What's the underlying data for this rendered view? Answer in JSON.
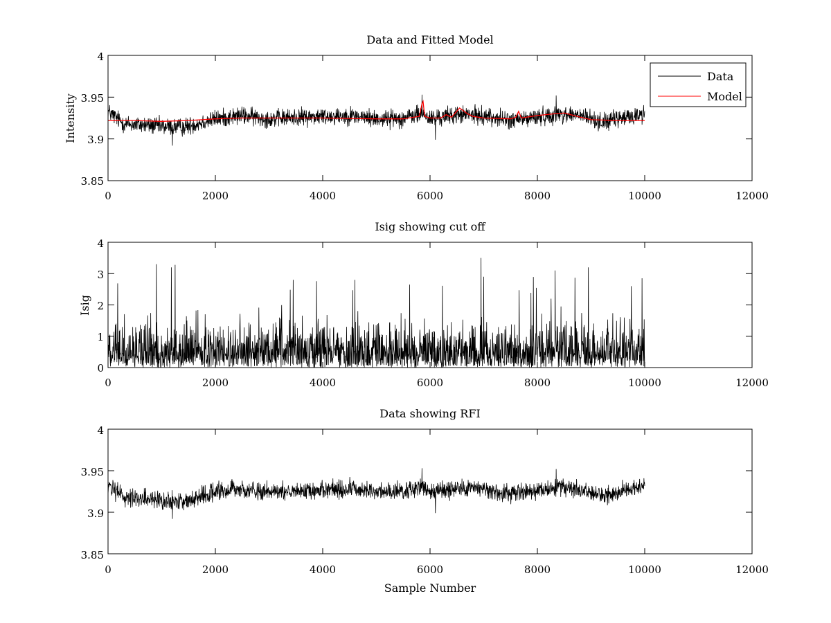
{
  "chart_data": [
    {
      "type": "line",
      "title": "Data and Fitted Model",
      "xlabel": "",
      "ylabel": "Intensity",
      "xlim": [
        0,
        12000
      ],
      "ylim": [
        3.85,
        4
      ],
      "xticks": [
        0,
        2000,
        4000,
        6000,
        8000,
        10000,
        12000
      ],
      "xtick_labels": [
        "0",
        "2000",
        "4000",
        "6000",
        "8000",
        "10000",
        "12000"
      ],
      "yticks": [
        3.85,
        3.9,
        3.95,
        4
      ],
      "ytick_labels": [
        "3.85",
        "3.9",
        "3.95",
        "4"
      ],
      "legend": {
        "position": "top-right",
        "entries": [
          "Data",
          "Model"
        ]
      },
      "series": [
        {
          "name": "Data",
          "color": "#000000",
          "kind": "noise",
          "x": [
            0,
            300,
            600,
            1000,
            1400,
            2000,
            2500,
            3000,
            3500,
            4000,
            4500,
            5000,
            5500,
            5850,
            6000,
            6500,
            7000,
            7500,
            8000,
            8400,
            8800,
            9200,
            9600,
            10000
          ],
          "values": [
            3.933,
            3.918,
            3.917,
            3.915,
            3.914,
            3.924,
            3.928,
            3.924,
            3.926,
            3.927,
            3.928,
            3.924,
            3.925,
            3.93,
            3.924,
            3.929,
            3.928,
            3.922,
            3.926,
            3.93,
            3.928,
            3.92,
            3.925,
            3.93
          ],
          "noise_amplitude": 0.0075,
          "spikes": [
            [
              5850,
              3.953
            ],
            [
              6100,
              3.899
            ],
            [
              8350,
              3.952
            ],
            [
              1200,
              3.892
            ]
          ]
        },
        {
          "name": "Model",
          "color": "#ff0000",
          "kind": "line",
          "x": [
            0,
            500,
            1000,
            1500,
            2000,
            2500,
            3000,
            4000,
            5000,
            5500,
            5800,
            5850,
            5870,
            5900,
            6000,
            6200,
            6300,
            6400,
            6550,
            6700,
            6800,
            7000,
            7500,
            7600,
            7650,
            7700,
            8000,
            8300,
            8500,
            8800,
            9000,
            9500,
            10000
          ],
          "values": [
            3.922,
            3.922,
            3.921,
            3.922,
            3.924,
            3.925,
            3.925,
            3.925,
            3.924,
            3.924,
            3.927,
            3.942,
            3.945,
            3.927,
            3.925,
            3.925,
            3.929,
            3.926,
            3.937,
            3.93,
            3.927,
            3.925,
            3.924,
            3.926,
            3.933,
            3.925,
            3.928,
            3.93,
            3.931,
            3.926,
            3.923,
            3.922,
            3.922
          ]
        }
      ]
    },
    {
      "type": "line",
      "title": "Isig showing cut off",
      "xlabel": "",
      "ylabel": "Isig",
      "xlim": [
        0,
        12000
      ],
      "ylim": [
        0,
        4
      ],
      "xticks": [
        0,
        2000,
        4000,
        6000,
        8000,
        10000,
        12000
      ],
      "xtick_labels": [
        "0",
        "2000",
        "4000",
        "6000",
        "8000",
        "10000",
        "12000"
      ],
      "yticks": [
        0,
        1,
        2,
        3,
        4
      ],
      "ytick_labels": [
        "0",
        "1",
        "2",
        "3",
        "4"
      ],
      "series": [
        {
          "name": "Isig",
          "color": "#000000",
          "kind": "abs_noise",
          "x": [
            0,
            10000
          ],
          "values": [
            0.8,
            0.8
          ],
          "spikes": [
            [
              900,
              3.3
            ],
            [
              1250,
              3.28
            ],
            [
              1180,
              3.2
            ],
            [
              3450,
              2.8
            ],
            [
              4600,
              2.8
            ],
            [
              6950,
              3.5
            ],
            [
              7000,
              2.9
            ],
            [
              8330,
              3.1
            ],
            [
              8950,
              3.2
            ],
            [
              9750,
              2.6
            ],
            [
              9950,
              2.85
            ]
          ]
        }
      ]
    },
    {
      "type": "line",
      "title": "Data showing RFI",
      "xlabel": "Sample Number",
      "ylabel": "",
      "xlim": [
        0,
        12000
      ],
      "ylim": [
        3.85,
        4
      ],
      "xticks": [
        0,
        2000,
        4000,
        6000,
        8000,
        10000,
        12000
      ],
      "xtick_labels": [
        "0",
        "2000",
        "4000",
        "6000",
        "8000",
        "10000",
        "12000"
      ],
      "yticks": [
        3.85,
        3.9,
        3.95,
        4
      ],
      "ytick_labels": [
        "3.85",
        "3.9",
        "3.95",
        "4"
      ],
      "series": [
        {
          "name": "Data",
          "color": "#000000",
          "kind": "noise",
          "x": [
            0,
            300,
            600,
            1000,
            1400,
            2000,
            2500,
            3000,
            3500,
            4000,
            4500,
            5000,
            5500,
            5850,
            6000,
            6500,
            7000,
            7500,
            8000,
            8400,
            8800,
            9200,
            9600,
            10000
          ],
          "values": [
            3.933,
            3.918,
            3.917,
            3.915,
            3.914,
            3.924,
            3.928,
            3.924,
            3.926,
            3.927,
            3.928,
            3.924,
            3.925,
            3.93,
            3.924,
            3.929,
            3.928,
            3.922,
            3.926,
            3.93,
            3.928,
            3.92,
            3.925,
            3.93
          ],
          "noise_amplitude": 0.0075,
          "spikes": [
            [
              5850,
              3.953
            ],
            [
              6100,
              3.899
            ],
            [
              8350,
              3.952
            ],
            [
              1200,
              3.892
            ]
          ]
        }
      ]
    }
  ]
}
